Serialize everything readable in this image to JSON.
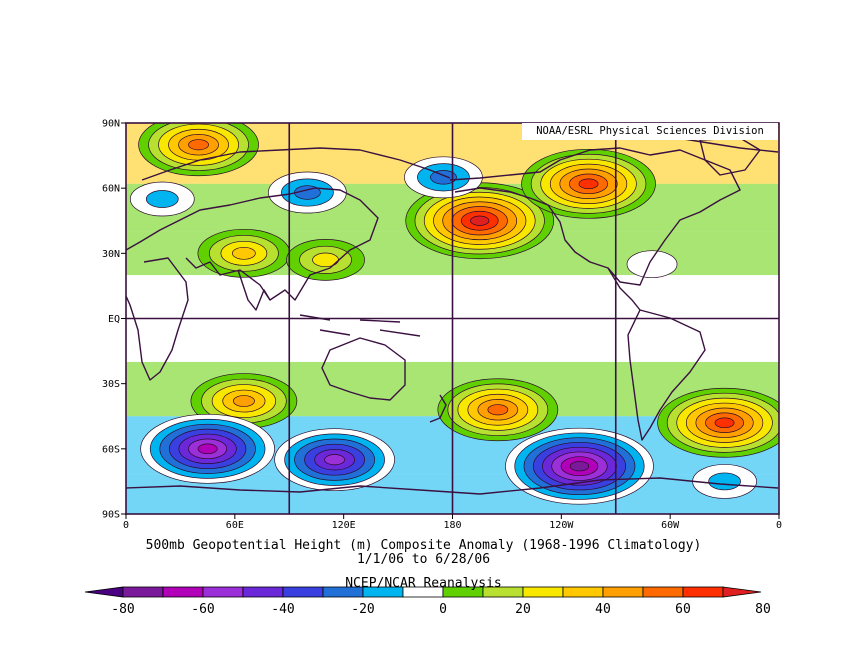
{
  "credit": "NOAA/ESRL Physical Sciences Division",
  "caption": {
    "line1": "500mb Geopotential Height (m) Composite Anomaly (1968-1996 Climatology)",
    "line2": "1/1/06  to 6/28/06",
    "line3": "NCEP/NCAR Reanalysis"
  },
  "lat_labels": [
    "90N",
    "60N",
    "30N",
    "EQ",
    "30S",
    "60S",
    "90S"
  ],
  "lon_labels": [
    "0",
    "60E",
    "120E",
    "180",
    "120W",
    "60W",
    "0"
  ],
  "colorbar": {
    "labels": [
      "-80",
      "-60",
      "-40",
      "-20",
      "0",
      "20",
      "40",
      "60",
      "80"
    ],
    "levels": [
      -80,
      -70,
      -60,
      -50,
      -40,
      -30,
      -20,
      -10,
      10,
      20,
      30,
      40,
      50,
      60,
      70,
      80
    ],
    "colors": [
      "#4a0080",
      "#7a1a9a",
      "#b000b8",
      "#9b30d8",
      "#6a28d8",
      "#3a40e0",
      "#2070d8",
      "#00b4f0",
      "#ffffff",
      "#60d000",
      "#b8e030",
      "#f8e800",
      "#ffc800",
      "#ffa000",
      "#ff6a00",
      "#ff3000",
      "#e02020"
    ]
  },
  "anomalies": [
    {
      "lon": 40,
      "lat": 80,
      "value": 60
    },
    {
      "lon": 195,
      "lat": 45,
      "value": 80
    },
    {
      "lon": 255,
      "lat": 62,
      "value": 70
    },
    {
      "lon": 100,
      "lat": 58,
      "value": -30
    },
    {
      "lon": 175,
      "lat": 65,
      "value": -30
    },
    {
      "lon": 20,
      "lat": 55,
      "value": -20
    },
    {
      "lon": 290,
      "lat": 25,
      "value": -10
    },
    {
      "lon": 65,
      "lat": 30,
      "value": 40
    },
    {
      "lon": 110,
      "lat": 27,
      "value": 30
    },
    {
      "lon": 65,
      "lat": -38,
      "value": 50
    },
    {
      "lon": 205,
      "lat": -42,
      "value": 60
    },
    {
      "lon": 330,
      "lat": -48,
      "value": 70
    },
    {
      "lon": 45,
      "lat": -60,
      "value": -70
    },
    {
      "lon": 115,
      "lat": -65,
      "value": -60
    },
    {
      "lon": 250,
      "lat": -68,
      "value": -80
    },
    {
      "lon": 330,
      "lat": -75,
      "value": -20
    }
  ]
}
